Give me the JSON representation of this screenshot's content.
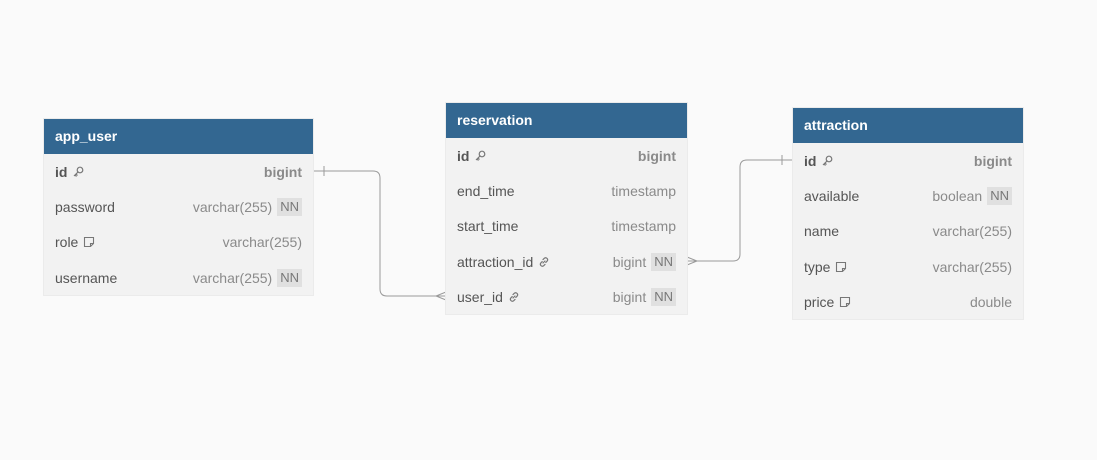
{
  "tables": [
    {
      "name": "app_user",
      "fields": [
        {
          "name": "id",
          "type": "bigint",
          "pk": true,
          "icon": "key-icon"
        },
        {
          "name": "password",
          "type": "varchar(255)",
          "nn": "NN"
        },
        {
          "name": "role",
          "type": "varchar(255)",
          "icon": "note-icon"
        },
        {
          "name": "username",
          "type": "varchar(255)",
          "nn": "NN"
        }
      ]
    },
    {
      "name": "reservation",
      "fields": [
        {
          "name": "id",
          "type": "bigint",
          "pk": true,
          "icon": "key-icon"
        },
        {
          "name": "end_time",
          "type": "timestamp"
        },
        {
          "name": "start_time",
          "type": "timestamp"
        },
        {
          "name": "attraction_id",
          "type": "bigint",
          "nn": "NN",
          "icon": "link-icon"
        },
        {
          "name": "user_id",
          "type": "bigint",
          "nn": "NN",
          "icon": "link-icon"
        }
      ]
    },
    {
      "name": "attraction",
      "fields": [
        {
          "name": "id",
          "type": "bigint",
          "pk": true,
          "icon": "key-icon"
        },
        {
          "name": "available",
          "type": "boolean",
          "nn": "NN"
        },
        {
          "name": "name",
          "type": "varchar(255)"
        },
        {
          "name": "type",
          "type": "varchar(255)",
          "icon": "note-icon"
        },
        {
          "name": "price",
          "type": "double",
          "icon": "note-icon"
        }
      ]
    }
  ],
  "relationships": [
    {
      "from": "app_user.id",
      "to": "reservation.user_id",
      "from_card": "one",
      "to_card": "many"
    },
    {
      "from": "attraction.id",
      "to": "reservation.attraction_id",
      "from_card": "one",
      "to_card": "many"
    }
  ],
  "colors": {
    "header": "#336791",
    "body": "#f2f2f2",
    "background": "#fafafa",
    "line": "#999999"
  }
}
